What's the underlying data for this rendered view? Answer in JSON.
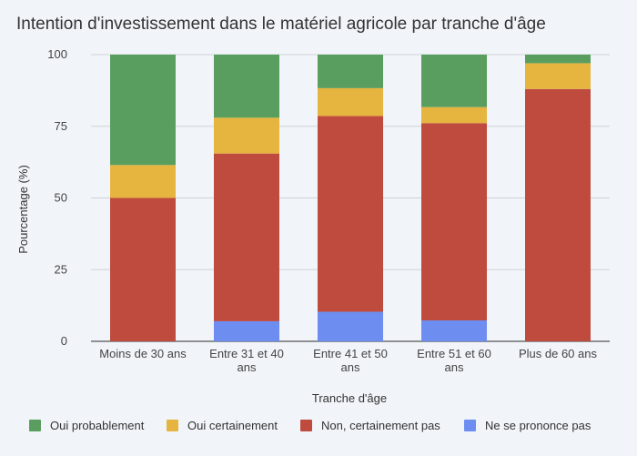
{
  "chart_data": {
    "type": "bar",
    "stacked": true,
    "title": "Intention d'investissement dans le matériel agricole par tranche d'âge",
    "xlabel": "Tranche d'âge",
    "ylabel": "Pourcentage (%)",
    "ylim": [
      0,
      100
    ],
    "yticks": [
      "0",
      "25",
      "50",
      "75",
      "100"
    ],
    "grid": true,
    "legend_position": "bottom",
    "categories": [
      [
        "Moins de 30 ans"
      ],
      [
        "Entre 31 et 40",
        "ans"
      ],
      [
        "Entre 41 et 50",
        "ans"
      ],
      [
        "Entre 51 et 60",
        "ans"
      ],
      [
        "Plus de 60 ans"
      ]
    ],
    "series": [
      {
        "name": "Ne se prononce pas",
        "color": "#6d8ef0",
        "values": [
          0,
          7,
          10.3,
          7.3,
          0
        ]
      },
      {
        "name": "Non, certainement pas",
        "color": "#bf4b3f",
        "values": [
          50,
          58.5,
          68.3,
          68.8,
          88
        ]
      },
      {
        "name": "Oui certainement",
        "color": "#e5b53f",
        "values": [
          11.5,
          12.5,
          9.7,
          5.6,
          9
        ]
      },
      {
        "name": "Oui probablement",
        "color": "#5a9e5f",
        "values": [
          38.5,
          22,
          11.7,
          18.3,
          3
        ]
      }
    ],
    "legend_order": [
      "Oui probablement",
      "Oui certainement",
      "Non, certainement pas",
      "Ne se prononce pas"
    ]
  }
}
